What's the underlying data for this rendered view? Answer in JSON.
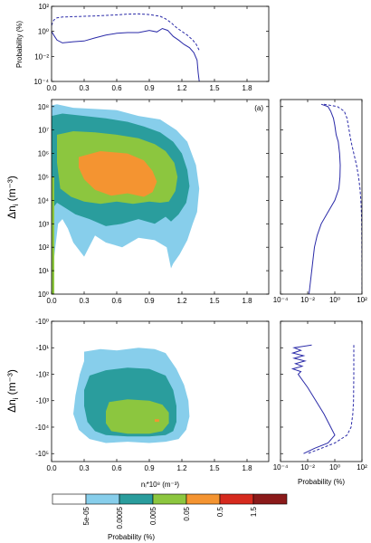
{
  "chart_data": [
    {
      "id": "top",
      "type": "line",
      "ylabel": "Probability (%)",
      "xlim": [
        0,
        2.0
      ],
      "ylim_log10": [
        -4,
        2
      ],
      "x_ticks": [
        "0.0",
        "0.3",
        "0.6",
        "0.9",
        "1.2",
        "1.5",
        "1.8"
      ],
      "y_ticks": [
        "10⁻⁴",
        "10⁻²",
        "10⁰",
        "10²"
      ],
      "series": [
        {
          "style": "solid",
          "color": "#2a2aa8",
          "x": [
            0.0,
            0.02,
            0.05,
            0.1,
            0.2,
            0.3,
            0.4,
            0.5,
            0.6,
            0.7,
            0.8,
            0.9,
            0.97,
            1.02,
            1.07,
            1.12,
            1.17,
            1.22,
            1.27,
            1.31,
            1.34,
            1.35,
            1.36
          ],
          "y": [
            1.0,
            0.5,
            0.2,
            0.12,
            0.15,
            0.17,
            0.3,
            0.5,
            0.7,
            0.8,
            0.8,
            1.2,
            0.9,
            1.7,
            1.2,
            0.4,
            0.2,
            0.09,
            0.05,
            0.02,
            0.005,
            0.0005,
            0.0001
          ]
        },
        {
          "style": "dashed",
          "color": "#2a2aa8",
          "x": [
            0.0,
            0.02,
            0.05,
            0.1,
            0.2,
            0.3,
            0.4,
            0.5,
            0.6,
            0.7,
            0.8,
            0.9,
            1.0,
            1.05,
            1.1,
            1.15,
            1.2,
            1.25,
            1.3,
            1.33,
            1.36
          ],
          "y": [
            3,
            8,
            12,
            14,
            15,
            16,
            17,
            19,
            21,
            24,
            25,
            22,
            16,
            10,
            5,
            2,
            1,
            0.5,
            0.2,
            0.1,
            0.03
          ]
        }
      ]
    },
    {
      "id": "main",
      "type": "heatmap",
      "panel_label": "(a)",
      "xlim": [
        0,
        2.0
      ],
      "ylim_log10": [
        0,
        8.3
      ],
      "x_ticks": [
        "0.0",
        "0.3",
        "0.6",
        "0.9",
        "1.2",
        "1.5",
        "1.8"
      ],
      "y_ticks": [
        "10⁰",
        "10¹",
        "10²",
        "10³",
        "10⁴",
        "10⁵",
        "10⁶",
        "10⁷",
        "10⁸"
      ],
      "ylabel": "Δn",
      "ylabel_sub": "i",
      "ylabel_unit": "(m⁻³)",
      "regions": [
        {
          "level": 1,
          "x": [
            0.0,
            0.05,
            0.2,
            0.4,
            0.6,
            0.8,
            1.0,
            1.15,
            1.25,
            1.33,
            1.36,
            1.34,
            1.3,
            1.25,
            1.18,
            1.12,
            1.1,
            1.06,
            0.95,
            0.8,
            0.65,
            0.5,
            0.4,
            0.3,
            0.2,
            0.15,
            0.1,
            0.06,
            0.03,
            0.0
          ],
          "y": [
            8.05,
            8.1,
            7.95,
            7.9,
            7.85,
            7.6,
            7.45,
            7.0,
            6.5,
            5.5,
            4.5,
            3.5,
            3.0,
            2.3,
            1.7,
            1.3,
            1.1,
            2.0,
            2.3,
            2.4,
            2.0,
            2.2,
            2.5,
            1.6,
            2.2,
            2.8,
            3.2,
            3.0,
            1.8,
            0.6
          ]
        },
        {
          "level": 2,
          "x": [
            0.0,
            0.1,
            0.3,
            0.5,
            0.7,
            0.85,
            1.0,
            1.12,
            1.2,
            1.25,
            1.27,
            1.24,
            1.17,
            1.1,
            1.05,
            0.95,
            0.8,
            0.65,
            0.5,
            0.35,
            0.22,
            0.12,
            0.05,
            0.0
          ],
          "y": [
            7.6,
            7.7,
            7.6,
            7.5,
            7.35,
            7.15,
            6.9,
            6.5,
            6.0,
            5.3,
            4.6,
            3.9,
            3.4,
            3.1,
            3.3,
            3.0,
            3.2,
            3.0,
            2.9,
            3.2,
            3.4,
            3.7,
            3.9,
            3.6
          ]
        },
        {
          "level": 3,
          "x": [
            0.05,
            0.2,
            0.4,
            0.6,
            0.8,
            0.95,
            1.05,
            1.13,
            1.16,
            1.14,
            1.08,
            1.0,
            0.9,
            0.75,
            0.6,
            0.45,
            0.3,
            0.18,
            0.08,
            0.05
          ],
          "y": [
            6.8,
            6.95,
            6.9,
            6.8,
            6.65,
            6.4,
            6.1,
            5.6,
            5.0,
            4.4,
            3.95,
            3.9,
            3.95,
            3.85,
            3.95,
            3.85,
            3.95,
            4.15,
            4.5,
            5.6
          ]
        },
        {
          "level": 4,
          "x": [
            0.25,
            0.45,
            0.7,
            0.85,
            0.93,
            0.97,
            0.93,
            0.85,
            0.7,
            0.55,
            0.4,
            0.3,
            0.25
          ],
          "y": [
            5.85,
            6.1,
            6.0,
            5.7,
            5.25,
            4.8,
            4.35,
            4.15,
            4.3,
            4.2,
            4.45,
            4.9,
            5.4
          ]
        }
      ]
    },
    {
      "id": "right-top",
      "type": "line",
      "xlim_log10": [
        -4,
        2
      ],
      "ylim_log10": [
        0,
        8.3
      ],
      "x_ticks": [
        "10⁻⁴",
        "10⁻²",
        "10⁰",
        "10²"
      ],
      "series": [
        {
          "style": "solid",
          "color": "#2a2aa8",
          "y": [
            8.1,
            8.0,
            7.8,
            7.5,
            7.2,
            6.8,
            6.5,
            6.0,
            5.5,
            5.0,
            4.5,
            4.0,
            3.5,
            3.0,
            2.5,
            2.0,
            1.5,
            1.0,
            0.5,
            0.0
          ],
          "x": [
            -1.0,
            -0.5,
            -0.3,
            -0.1,
            0.0,
            0.1,
            0.25,
            0.35,
            0.4,
            0.38,
            0.3,
            0.0,
            -0.5,
            -1.0,
            -1.3,
            -1.5,
            -1.6,
            -1.7,
            -1.8,
            -1.9
          ]
        },
        {
          "style": "dashed",
          "color": "#2a2aa8",
          "y": [
            8.1,
            8.0,
            7.8,
            7.5,
            7.0,
            6.5,
            6.0,
            5.5,
            5.0,
            4.5,
            4.0,
            3.5,
            3.0,
            2.0,
            1.0,
            0.0
          ],
          "x": [
            -0.8,
            0.2,
            0.7,
            0.9,
            1.05,
            1.2,
            1.4,
            1.6,
            1.75,
            1.85,
            1.92,
            1.96,
            1.98,
            1.99,
            2.0,
            2.0
          ]
        }
      ]
    },
    {
      "id": "bottom",
      "type": "heatmap",
      "xlim": [
        0,
        2.0
      ],
      "ylim_log10": [
        0,
        5.3
      ],
      "x_ticks": [
        "0.0",
        "0.3",
        "0.6",
        "0.9",
        "1.2",
        "1.5",
        "1.8"
      ],
      "y_ticks": [
        "-10⁰",
        "-10¹",
        "-10²",
        "-10³",
        "-10⁴",
        "-10⁵"
      ],
      "ylabel": "Δn",
      "ylabel_sub": "i",
      "ylabel_unit": "(m⁻³)",
      "xlabel": "nᵢ*10⁸ (m⁻³)",
      "regions": [
        {
          "level": 1,
          "x": [
            0.3,
            0.45,
            0.6,
            0.8,
            0.95,
            1.05,
            1.15,
            1.22,
            1.26,
            1.27,
            1.24,
            1.17,
            1.05,
            0.9,
            0.7,
            0.5,
            0.35,
            0.25,
            0.2,
            0.22,
            0.26,
            0.3
          ],
          "y": [
            1.15,
            1.05,
            1.1,
            1.0,
            1.05,
            1.2,
            1.8,
            2.4,
            3.0,
            3.6,
            4.1,
            4.45,
            4.55,
            4.6,
            4.55,
            4.6,
            4.45,
            4.1,
            3.5,
            2.8,
            2.0,
            1.5
          ]
        },
        {
          "level": 2,
          "x": [
            0.35,
            0.5,
            0.7,
            0.9,
            1.05,
            1.12,
            1.15,
            1.15,
            1.12,
            1.05,
            0.9,
            0.7,
            0.5,
            0.4,
            0.33,
            0.3,
            0.3
          ],
          "y": [
            2.05,
            1.85,
            1.75,
            1.8,
            2.05,
            2.6,
            3.2,
            3.8,
            4.15,
            4.3,
            4.35,
            4.35,
            4.3,
            4.15,
            3.8,
            3.2,
            2.6
          ]
        },
        {
          "level": 3,
          "x": [
            0.53,
            0.7,
            0.9,
            1.02,
            1.08,
            1.08,
            1.02,
            0.9,
            0.7,
            0.55,
            0.5,
            0.5
          ],
          "y": [
            3.05,
            2.95,
            3.0,
            3.15,
            3.45,
            3.85,
            4.15,
            4.25,
            4.25,
            4.15,
            3.85,
            3.4
          ]
        },
        {
          "level": 4,
          "x": [
            0.95,
            0.99,
            0.99,
            0.95
          ],
          "y": [
            3.7,
            3.7,
            3.8,
            3.8
          ]
        }
      ]
    },
    {
      "id": "right-bottom",
      "type": "line",
      "xlabel": "Probability (%)",
      "xlim_log10": [
        -4,
        2
      ],
      "ylim_log10": [
        0,
        5.3
      ],
      "x_ticks": [
        "10⁻⁴",
        "10⁻²",
        "10⁰",
        "10²"
      ],
      "series": [
        {
          "style": "solid",
          "color": "#2a2aa8",
          "y": [
            0.9,
            1.0,
            1.1,
            1.2,
            1.3,
            1.4,
            1.5,
            1.6,
            1.7,
            1.8,
            1.9,
            2.0,
            2.5,
            3.0,
            3.5,
            4.0,
            4.3,
            4.6,
            4.8,
            5.0
          ],
          "x": [
            -1.7,
            -3.0,
            -2.5,
            -3.1,
            -2.3,
            -3.0,
            -2.2,
            -2.9,
            -2.4,
            -3.1,
            -2.5,
            -2.7,
            -2.0,
            -1.4,
            -0.8,
            -0.3,
            0.0,
            -0.5,
            -1.5,
            -2.3
          ]
        },
        {
          "style": "dashed",
          "color": "#2a2aa8",
          "y": [
            0.9,
            2.0,
            3.0,
            3.5,
            4.0,
            4.3,
            4.6,
            4.8,
            5.0
          ],
          "x": [
            1.4,
            1.4,
            1.38,
            1.33,
            1.2,
            0.9,
            0.0,
            -1.0,
            -2.0
          ]
        }
      ]
    }
  ],
  "colorbar": {
    "label": "Probability (%)",
    "tick_labels": [
      "5e-05",
      "0.0005",
      "0.005",
      "0.05",
      "0.5",
      "1.5"
    ],
    "colors": [
      "#ffffff",
      "#87ceeb",
      "#2a9d9d",
      "#8cc63f",
      "#f49431",
      "#d62a1e",
      "#8b1a1a"
    ]
  }
}
